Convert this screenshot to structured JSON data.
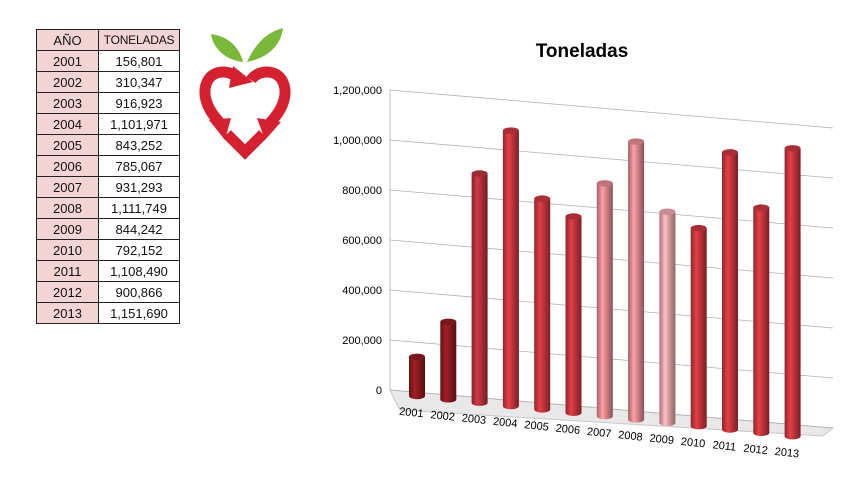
{
  "table": {
    "headers": [
      "AÑO",
      "TONELADAS"
    ],
    "rows": [
      [
        "2001",
        "156,801"
      ],
      [
        "2002",
        "310,347"
      ],
      [
        "2003",
        "916,923"
      ],
      [
        "2004",
        "1,101,971"
      ],
      [
        "2005",
        "843,252"
      ],
      [
        "2006",
        "785,067"
      ],
      [
        "2007",
        "931,293"
      ],
      [
        "2008",
        "1,111,749"
      ],
      [
        "2009",
        "844,242"
      ],
      [
        "2010",
        "792,152"
      ],
      [
        "2011",
        "1,108,490"
      ],
      [
        "2012",
        "900,866"
      ],
      [
        "2013",
        "1,151,690"
      ]
    ]
  },
  "logo": {
    "icon": "apple-heart-recycle-icon",
    "colors": {
      "red": "#d4202f",
      "green": "#7ab83a"
    }
  },
  "chart_data": {
    "type": "bar",
    "title": "Toneladas",
    "categories": [
      "2001",
      "2002",
      "2003",
      "2004",
      "2005",
      "2006",
      "2007",
      "2008",
      "2009",
      "2010",
      "2011",
      "2012",
      "2013"
    ],
    "values": [
      156801,
      310347,
      916923,
      1101971,
      843252,
      785067,
      931293,
      1111749,
      844242,
      792152,
      1108490,
      900866,
      1151690
    ],
    "bar_colors": [
      "#8e1a20",
      "#8e1a20",
      "#b8323b",
      "#c8363e",
      "#c8363e",
      "#c8363e",
      "#e18a8f",
      "#e18a8f",
      "#eda5a8",
      "#c8363e",
      "#c8363e",
      "#c8363e",
      "#c8363e"
    ],
    "ylim": [
      0,
      1200000
    ],
    "yticks": [
      0,
      200000,
      400000,
      600000,
      800000,
      1000000,
      1200000
    ],
    "ytick_labels": [
      "0",
      "200,000",
      "400,000",
      "600,000",
      "800,000",
      "1,000,000",
      "1,200,000"
    ],
    "style": "3d-cylinder",
    "grid": true,
    "legend": "none"
  }
}
